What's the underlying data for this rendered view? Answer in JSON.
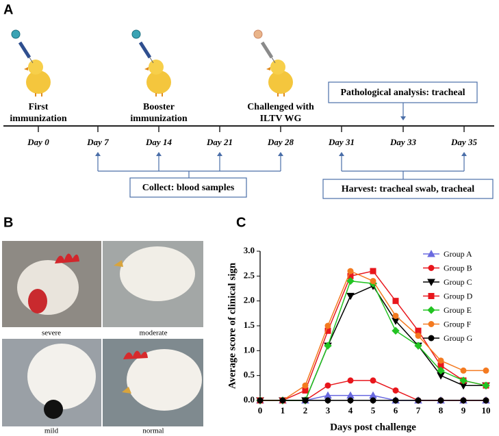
{
  "panel_labels": [
    "A",
    "B",
    "C"
  ],
  "panel_a": {
    "events": [
      [
        "First",
        "immunization"
      ],
      [
        "Booster",
        "immunization"
      ],
      [
        "Challenged with",
        "ILTV WG"
      ]
    ],
    "days": [
      "Day 0",
      "Day 7",
      "Day 14",
      "Day 21",
      "Day 28",
      "Day 31",
      "Day 33",
      "Day 35"
    ],
    "pathology_box": "Pathological analysis: tracheal",
    "blood_box": "Collect: blood samples",
    "harvest_box": "Harvest: tracheal swab, tracheal"
  },
  "panel_b": {
    "captions": [
      "severe",
      "moderate",
      "mild",
      "normal"
    ]
  },
  "chart_data": {
    "type": "line",
    "xlabel": "Days post challenge",
    "ylabel": "Average score of clinical sign",
    "x": [
      0,
      1,
      2,
      3,
      4,
      5,
      6,
      7,
      8,
      9,
      10
    ],
    "xlim": [
      0,
      10
    ],
    "xticks": [
      0,
      1,
      2,
      3,
      4,
      5,
      6,
      7,
      8,
      9,
      10
    ],
    "ylim": [
      0,
      3
    ],
    "yticks": [
      {
        "value": 0,
        "label": "0.0"
      },
      {
        "value": 0.5,
        "label": "0.5"
      },
      {
        "value": 1,
        "label": "1.0"
      },
      {
        "value": 1.5,
        "label": "1.5"
      },
      {
        "value": 2,
        "label": "2.0"
      },
      {
        "value": 2.5,
        "label": "2.5"
      },
      {
        "value": 3,
        "label": "3.0"
      }
    ],
    "legend": "upper right",
    "series": [
      {
        "name": "Group A",
        "color": "#6a6ae0",
        "marker": "triangle-up",
        "values": [
          0,
          0,
          0,
          0.1,
          0.1,
          0.1,
          0,
          0,
          0,
          0,
          0
        ]
      },
      {
        "name": "Group B",
        "color": "#e8161c",
        "marker": "circle",
        "values": [
          0,
          0,
          0,
          0.3,
          0.4,
          0.4,
          0.2,
          0,
          0,
          0,
          0
        ]
      },
      {
        "name": "Group C",
        "color": "#000000",
        "marker": "triangle-down",
        "values": [
          0,
          0,
          0,
          1.1,
          2.1,
          2.3,
          1.6,
          1.1,
          0.5,
          0.3,
          0.3
        ]
      },
      {
        "name": "Group D",
        "color": "#e8161c",
        "marker": "square",
        "values": [
          0,
          0,
          0.2,
          1.4,
          2.5,
          2.6,
          2.0,
          1.4,
          0.7,
          0.4,
          0.3
        ]
      },
      {
        "name": "Group E",
        "color": "#22c322",
        "marker": "diamond",
        "values": [
          0,
          0,
          0,
          1.1,
          2.4,
          2.35,
          1.4,
          1.1,
          0.6,
          0.4,
          0.3
        ]
      },
      {
        "name": "Group F",
        "color": "#f47a20",
        "marker": "circle",
        "values": [
          0,
          0,
          0.3,
          1.5,
          2.6,
          2.4,
          1.7,
          1.3,
          0.8,
          0.6,
          0.6
        ]
      },
      {
        "name": "Group G",
        "color": "#000000",
        "marker": "circle",
        "values": [
          0,
          0,
          0,
          0,
          0,
          0,
          0,
          0,
          0,
          0,
          0
        ]
      }
    ]
  }
}
